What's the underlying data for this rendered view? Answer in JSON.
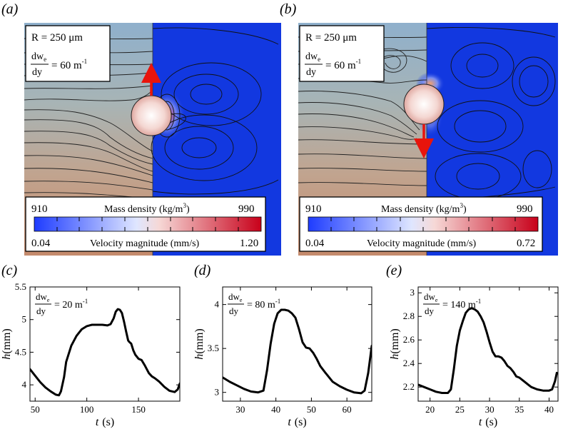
{
  "top": {
    "a": {
      "label": "(a)",
      "radius": "R = 250 μm",
      "grad_num": "dw",
      "grad_sub": "e",
      "grad_den": "dy",
      "grad_val": "= 60 m",
      "grad_exp": "-1",
      "density_title": "Mass density (kg/m",
      "density_exp": "3",
      "density_close": ")",
      "density_min": "910",
      "density_max": "990",
      "velocity_title": "Velocity magnitude (mm/s)",
      "velocity_min": "0.04",
      "velocity_max": "1.20"
    },
    "b": {
      "label": "(b)",
      "radius": "R = 250 μm",
      "grad_num": "dw",
      "grad_sub": "e",
      "grad_den": "dy",
      "grad_val": "= 60 m",
      "grad_exp": "-1",
      "density_title": "Mass density (kg/m",
      "density_exp": "3",
      "density_close": ")",
      "density_min": "910",
      "density_max": "990",
      "velocity_title": "Velocity magnitude (mm/s)",
      "velocity_min": "0.04",
      "velocity_max": "0.72"
    }
  },
  "colors": {
    "curve": "#000000",
    "arrow": "#e8140c",
    "flow": "#1238e0"
  },
  "chart_data": [
    {
      "id": "c",
      "panel_label": "(c)",
      "type": "line",
      "xlabel": "t",
      "xunit": "(s)",
      "ylabel": "h",
      "yunit": "(mm)",
      "grad_num": "dw",
      "grad_sub": "e",
      "grad_den": "dy",
      "grad_val": "= 20 m",
      "grad_exp": "-1",
      "xlim": [
        45,
        190
      ],
      "ylim": [
        3.75,
        5.5
      ],
      "xticks": [
        50,
        100,
        150
      ],
      "xticklabels": [
        "50",
        "100",
        "150"
      ],
      "yticks": [
        4,
        4.5,
        5,
        5.5
      ],
      "yticklabels": [
        "4",
        "4.5",
        "5",
        "5.5"
      ],
      "x": [
        45,
        50,
        55,
        60,
        65,
        70,
        73,
        75,
        78,
        80,
        85,
        90,
        95,
        100,
        105,
        110,
        115,
        120,
        123,
        126,
        128,
        130,
        132,
        134,
        136,
        138,
        140,
        141,
        143,
        145,
        147,
        150,
        153,
        156,
        158,
        160,
        163,
        166,
        170,
        175,
        180,
        185,
        188,
        190
      ],
      "y": [
        4.24,
        4.14,
        4.04,
        3.96,
        3.9,
        3.85,
        3.84,
        3.9,
        4.12,
        4.35,
        4.6,
        4.75,
        4.85,
        4.9,
        4.92,
        4.92,
        4.92,
        4.91,
        4.93,
        5.02,
        5.12,
        5.16,
        5.15,
        5.1,
        4.97,
        4.82,
        4.68,
        4.66,
        4.63,
        4.53,
        4.46,
        4.4,
        4.38,
        4.3,
        4.24,
        4.18,
        4.13,
        4.1,
        4.05,
        3.97,
        3.91,
        3.89,
        3.93,
        4.02
      ]
    },
    {
      "id": "d",
      "panel_label": "(d)",
      "type": "line",
      "xlabel": "t",
      "xunit": "(s)",
      "ylabel": "h",
      "yunit": "(mm)",
      "grad_num": "dw",
      "grad_sub": "e",
      "grad_den": "dy",
      "grad_val": "= 80 m",
      "grad_exp": "-1",
      "xlim": [
        25,
        67
      ],
      "ylim": [
        2.9,
        4.2
      ],
      "xticks": [
        30,
        40,
        50,
        60
      ],
      "xticklabels": [
        "30",
        "40",
        "50",
        "60"
      ],
      "yticks": [
        3,
        3.5,
        4
      ],
      "yticklabels": [
        "3",
        "3.5",
        "4"
      ],
      "x": [
        25,
        27,
        29,
        31,
        33,
        35,
        36.5,
        37.5,
        38.5,
        39.5,
        40.5,
        41.5,
        42.5,
        43.5,
        44.5,
        45.5,
        46.5,
        47.5,
        48.5,
        49.5,
        50.5,
        51.5,
        52.5,
        54,
        56,
        58,
        60,
        62,
        64,
        65,
        66,
        67
      ],
      "y": [
        3.17,
        3.12,
        3.08,
        3.04,
        3.01,
        3.0,
        3.02,
        3.25,
        3.55,
        3.78,
        3.9,
        3.94,
        3.94,
        3.93,
        3.9,
        3.85,
        3.72,
        3.57,
        3.51,
        3.5,
        3.45,
        3.38,
        3.3,
        3.22,
        3.12,
        3.07,
        3.03,
        3.0,
        2.99,
        3.02,
        3.22,
        3.53
      ]
    },
    {
      "id": "e",
      "panel_label": "(e)",
      "type": "line",
      "xlabel": "t",
      "xunit": "(s)",
      "ylabel": "h",
      "yunit": "(mm)",
      "grad_num": "dw",
      "grad_sub": "e",
      "grad_den": "dy",
      "grad_val": "= 140 m",
      "grad_exp": "-1",
      "xlim": [
        18,
        41.5
      ],
      "ylim": [
        2.08,
        3.05
      ],
      "xticks": [
        20,
        25,
        30,
        35,
        40
      ],
      "xticklabels": [
        "20",
        "25",
        "30",
        "35",
        "40"
      ],
      "yticks": [
        2.2,
        2.4,
        2.6,
        2.8,
        3
      ],
      "yticklabels": [
        "2.2",
        "2.4",
        "2.6",
        "2.8",
        "3"
      ],
      "x": [
        18,
        19,
        20,
        21,
        22,
        23,
        23.5,
        24,
        24.5,
        25,
        25.5,
        26,
        26.5,
        27,
        27.5,
        28,
        28.5,
        29,
        29.5,
        30,
        30.5,
        31,
        31.5,
        32,
        32.5,
        33,
        33.5,
        34,
        34.5,
        35,
        35.5,
        36,
        36.5,
        37,
        38,
        39,
        40,
        40.5,
        41,
        41.3
      ],
      "y": [
        2.22,
        2.2,
        2.18,
        2.16,
        2.15,
        2.15,
        2.18,
        2.35,
        2.55,
        2.68,
        2.76,
        2.83,
        2.86,
        2.87,
        2.86,
        2.84,
        2.8,
        2.75,
        2.67,
        2.58,
        2.5,
        2.46,
        2.46,
        2.45,
        2.42,
        2.38,
        2.36,
        2.33,
        2.29,
        2.28,
        2.26,
        2.24,
        2.22,
        2.2,
        2.18,
        2.17,
        2.17,
        2.18,
        2.25,
        2.32
      ]
    }
  ]
}
